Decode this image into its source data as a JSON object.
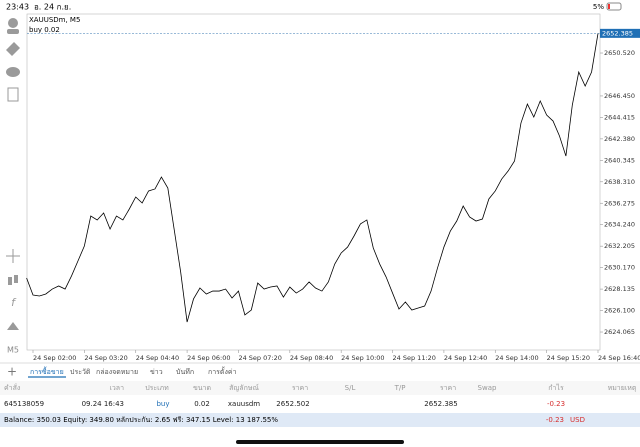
{
  "status_bar": {
    "time": "23:43",
    "date": "อ. 24 ก.ย.",
    "battery": "5%"
  },
  "chart_header": {
    "symbol": "XAUUSDm, M5",
    "trade_label": "buy 0.02",
    "timeframe": "M5"
  },
  "chart_data": {
    "type": "line",
    "color": "#000000",
    "grid": false,
    "price_line": 2652.385,
    "price_line_color": "#1f6fb5",
    "x": [
      "24 Sep 01:50",
      "24 Sep 02:00",
      "24 Sep 02:10",
      "24 Sep 02:20",
      "24 Sep 02:30",
      "24 Sep 02:40",
      "24 Sep 02:50",
      "24 Sep 03:00",
      "24 Sep 03:10",
      "24 Sep 03:20",
      "24 Sep 03:30",
      "24 Sep 03:40",
      "24 Sep 03:50",
      "24 Sep 04:00",
      "24 Sep 04:10",
      "24 Sep 04:20",
      "24 Sep 04:30",
      "24 Sep 04:40",
      "24 Sep 04:50",
      "24 Sep 05:00",
      "24 Sep 05:10",
      "24 Sep 05:20",
      "24 Sep 05:30",
      "24 Sep 05:40",
      "24 Sep 05:50",
      "24 Sep 06:00",
      "24 Sep 06:10",
      "24 Sep 06:20",
      "24 Sep 06:30",
      "24 Sep 06:40",
      "24 Sep 06:50",
      "24 Sep 07:00",
      "24 Sep 07:10",
      "24 Sep 07:20",
      "24 Sep 07:30",
      "24 Sep 07:40",
      "24 Sep 07:50",
      "24 Sep 08:00",
      "24 Sep 08:10",
      "24 Sep 08:20",
      "24 Sep 08:30",
      "24 Sep 08:40",
      "24 Sep 08:50",
      "24 Sep 09:00",
      "24 Sep 09:10",
      "24 Sep 09:20",
      "24 Sep 09:30",
      "24 Sep 09:40",
      "24 Sep 09:50",
      "24 Sep 10:00",
      "24 Sep 10:10",
      "24 Sep 10:20",
      "24 Sep 10:30",
      "24 Sep 10:40",
      "24 Sep 10:50",
      "24 Sep 11:00",
      "24 Sep 11:10",
      "24 Sep 11:20",
      "24 Sep 11:30",
      "24 Sep 11:40",
      "24 Sep 11:50",
      "24 Sep 12:00",
      "24 Sep 12:10",
      "24 Sep 12:20",
      "24 Sep 12:30",
      "24 Sep 12:40",
      "24 Sep 12:50",
      "24 Sep 13:00",
      "24 Sep 13:10",
      "24 Sep 13:20",
      "24 Sep 13:30",
      "24 Sep 13:40",
      "24 Sep 13:50",
      "24 Sep 14:00",
      "24 Sep 14:10",
      "24 Sep 14:20",
      "24 Sep 14:30",
      "24 Sep 14:40",
      "24 Sep 14:50",
      "24 Sep 15:00",
      "24 Sep 15:10",
      "24 Sep 15:20",
      "24 Sep 15:30",
      "24 Sep 15:40",
      "24 Sep 15:50",
      "24 Sep 16:00",
      "24 Sep 16:10",
      "24 Sep 16:20",
      "24 Sep 16:30",
      "24 Sep 16:40"
    ],
    "values": [
      2629.19,
      2627.57,
      2627.48,
      2627.67,
      2628.14,
      2628.43,
      2628.14,
      2629.38,
      2630.8,
      2632.22,
      2635.06,
      2634.69,
      2635.35,
      2633.83,
      2635.06,
      2634.69,
      2635.73,
      2636.87,
      2636.3,
      2637.44,
      2637.63,
      2638.76,
      2637.72,
      2633.74,
      2629.75,
      2625.01,
      2627.2,
      2628.24,
      2627.67,
      2627.95,
      2627.95,
      2628.14,
      2627.29,
      2627.95,
      2625.68,
      2626.15,
      2628.71,
      2628.14,
      2628.33,
      2628.43,
      2627.38,
      2628.33,
      2627.76,
      2628.14,
      2628.81,
      2628.24,
      2627.95,
      2628.81,
      2630.51,
      2631.56,
      2632.12,
      2633.17,
      2634.31,
      2634.69,
      2632.03,
      2630.51,
      2629.28,
      2627.76,
      2626.25,
      2626.91,
      2626.15,
      2626.34,
      2626.53,
      2627.95,
      2630.13,
      2632.12,
      2633.64,
      2634.59,
      2636.01,
      2634.97,
      2634.59,
      2634.78,
      2636.68,
      2637.44,
      2638.57,
      2639.33,
      2640.28,
      2643.88,
      2645.68,
      2644.45,
      2645.97,
      2644.64,
      2644.07,
      2642.65,
      2640.75,
      2645.59,
      2648.72,
      2647.39,
      2648.72,
      2652.38
    ],
    "xticks": [
      "24 Sep 02:00",
      "24 Sep 03:20",
      "24 Sep 04:40",
      "24 Sep 06:00",
      "24 Sep 07:20",
      "24 Sep 08:40",
      "24 Sep 10:00",
      "24 Sep 11:20",
      "24 Sep 12:40",
      "24 Sep 14:00",
      "24 Sep 15:20",
      "24 Sep 16:40"
    ],
    "ylim": [
      2622.36,
      2654.22
    ],
    "yticks": [
      2624.065,
      {
        "value": 2626.1,
        "label": "2626.100"
      },
      2628.135,
      {
        "value": 2630.17,
        "label": "2630.170"
      },
      2632.205,
      {
        "value": 2634.24,
        "label": "2634.240"
      },
      2636.275,
      {
        "value": 2638.31,
        "label": "2638.310"
      },
      2640.345,
      {
        "value": 2642.38,
        "label": "2642.380"
      },
      2644.415,
      {
        "value": 2646.45,
        "label": "2646.450"
      },
      {
        "value": 2650.52,
        "label": "2650.520"
      }
    ]
  },
  "tabs": [
    "การซื้อขาย",
    "ประวัติ",
    "กล่องจดหมาย",
    "ข่าว",
    "บันทึก",
    "การตั้งค่า"
  ],
  "table": {
    "headers": [
      "คำสั่ง",
      "เวลา",
      "ประเภท",
      "ขนาด",
      "สัญลักษณ์",
      "ราคา",
      "S/L",
      "T/P",
      "ราคา",
      "Swap",
      "กำไร",
      "หมายเหตุ"
    ],
    "row": [
      "645138059",
      "09.24 16:43",
      "buy",
      "0.02",
      "xauusdm",
      "2652.502",
      null,
      null,
      "2652.385",
      null,
      "-0.23",
      null
    ]
  },
  "footer": {
    "summary": "Balance: 350.03 Equity: 349.80 หลักประกัน: 2.65 ฟรี: 347.15 Level: 13 187.55%",
    "profit": "-0.23",
    "currency": "USD"
  }
}
